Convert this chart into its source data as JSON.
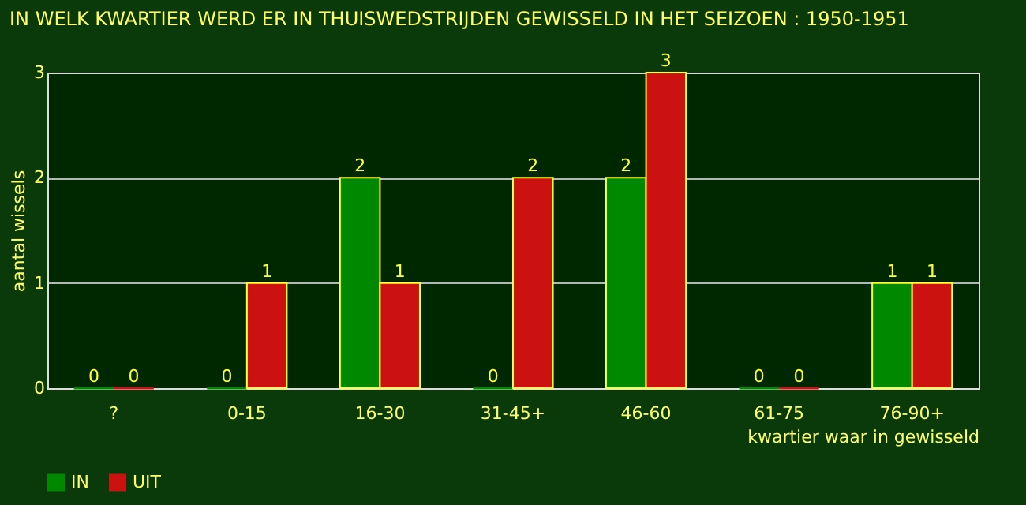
{
  "chart_data": {
    "type": "bar",
    "title": "IN WELK KWARTIER WERD ER IN THUISWEDSTRIJDEN GEWISSELD IN HET SEIZOEN : 1950-1951",
    "xlabel": "kwartier waar in gewisseld",
    "ylabel": "aantal wissels",
    "categories": [
      "?",
      "0-15",
      "16-30",
      "31-45+",
      "46-60",
      "61-75",
      "76-90+"
    ],
    "series": [
      {
        "name": "IN",
        "color": "#008800",
        "values": [
          0,
          0,
          2,
          0,
          2,
          0,
          1
        ]
      },
      {
        "name": "UIT",
        "color": "#cc1111",
        "values": [
          0,
          1,
          1,
          2,
          3,
          0,
          1
        ]
      }
    ],
    "ylim": [
      0,
      3
    ],
    "yticks": [
      0,
      1,
      2,
      3
    ],
    "grid": "y",
    "legend": "bottom",
    "data_labels": true
  }
}
